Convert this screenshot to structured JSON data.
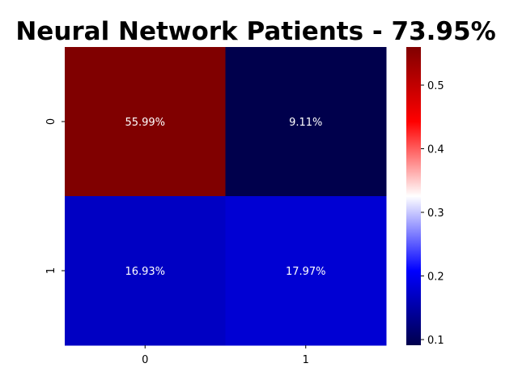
{
  "chart_data": {
    "type": "heatmap",
    "title": "Neural Network Patients - 73.95%",
    "rows": [
      "0",
      "1"
    ],
    "columns": [
      "0",
      "1"
    ],
    "values": [
      [
        0.5599,
        0.0911
      ],
      [
        0.1693,
        0.1797
      ]
    ],
    "cell_labels": [
      [
        "55.99%",
        "9.11%"
      ],
      [
        "16.93%",
        "17.97%"
      ]
    ],
    "xlabel": "",
    "ylabel": "",
    "colormap": "seismic",
    "colormap_stops": [
      "#00004c",
      "#0000ff",
      "#ffffff",
      "#ff0000",
      "#800000"
    ],
    "colorbar": {
      "range": [
        0.0911,
        0.5599
      ],
      "ticks": [
        0.1,
        0.2,
        0.3,
        0.4,
        0.5
      ],
      "tick_labels": [
        "0.1",
        "0.2",
        "0.3",
        "0.4",
        "0.5"
      ]
    },
    "grid": false
  }
}
